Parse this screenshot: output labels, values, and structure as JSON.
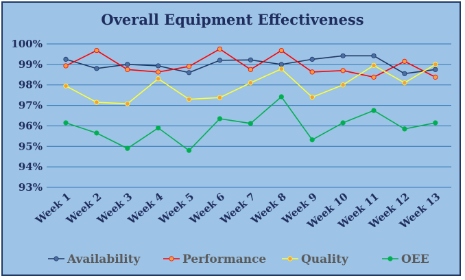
{
  "chart_data": {
    "type": "line",
    "title": "Overall Equipment Effectiveness",
    "xlabel": "",
    "ylabel": "",
    "categories": [
      "Week 1",
      "Week 2",
      "Week 3",
      "Week 4",
      "Week 5",
      "Week 6",
      "Week 7",
      "Week 8",
      "Week 9",
      "Week 10",
      "Week 11",
      "Week 12",
      "Week 13"
    ],
    "y_ticks": [
      "93%",
      "94%",
      "95%",
      "96%",
      "97%",
      "98%",
      "99%",
      "100%"
    ],
    "ylim": [
      93,
      100
    ],
    "grid": true,
    "legend_position": "bottom",
    "series": [
      {
        "name": "Availability",
        "color": "#1f3864",
        "marker": "#4a6fa5",
        "values": [
          99.25,
          98.8,
          99.0,
          98.93,
          98.6,
          99.2,
          99.22,
          99.0,
          99.25,
          99.42,
          99.42,
          98.55,
          98.75
        ]
      },
      {
        "name": "Performance",
        "color": "#ff0000",
        "marker": "#f4a040",
        "values": [
          98.93,
          99.68,
          98.75,
          98.63,
          98.9,
          99.75,
          98.75,
          99.68,
          98.63,
          98.7,
          98.38,
          99.15,
          98.38
        ]
      },
      {
        "name": "Quality",
        "color": "#ffff33",
        "marker": "#f4a040",
        "values": [
          97.95,
          97.15,
          97.08,
          98.3,
          97.3,
          97.38,
          98.1,
          98.78,
          97.4,
          98.0,
          98.95,
          98.1,
          99.0
        ]
      },
      {
        "name": "OEE",
        "color": "#00b050",
        "marker": "#00b050",
        "values": [
          96.15,
          95.65,
          94.9,
          95.9,
          94.8,
          96.35,
          96.12,
          97.42,
          95.32,
          96.15,
          96.75,
          95.85,
          96.15
        ]
      }
    ]
  }
}
